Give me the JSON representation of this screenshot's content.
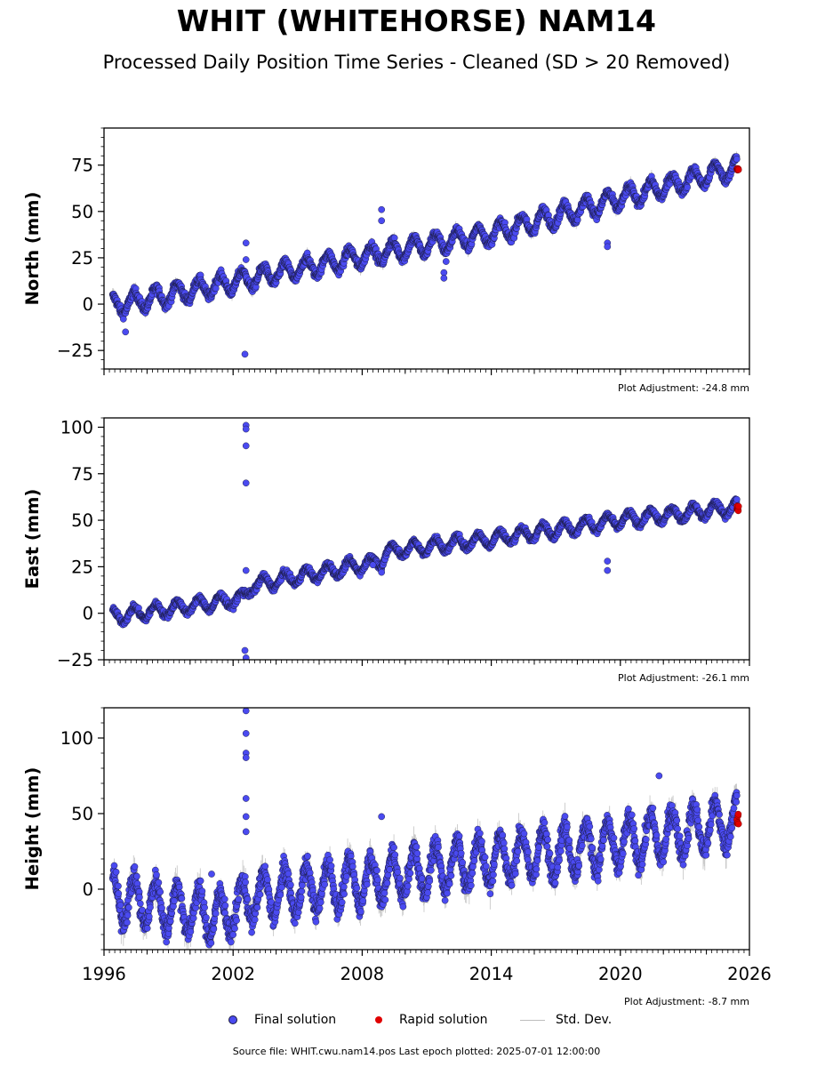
{
  "title": "WHIT (WHITEHORSE) NAM14",
  "subtitle": "Processed Daily Position Time Series - Cleaned (SD > 20 Removed)",
  "legend": {
    "final": "Final solution",
    "rapid": "Rapid solution",
    "std": "Std. Dev."
  },
  "footer": "Source file: WHIT.cwu.nam14.pos  Last epoch plotted: 2025-07-01 12:00:00",
  "colors": {
    "final": "#4a4af0",
    "final_edge": "#1a1a40",
    "rapid": "#e00000",
    "std": "#9e9e9e"
  },
  "chart_data": [
    {
      "type": "scatter",
      "ylabel": "North (mm)",
      "note": "Plot Adjustment: -24.8 mm",
      "xlim": [
        1996,
        2026
      ],
      "ylim": [
        -35,
        95
      ],
      "yticks": [
        -25,
        0,
        25,
        50,
        75
      ],
      "trend": [
        [
          1996.4,
          -1
        ],
        [
          2002.5,
          13
        ],
        [
          2009.0,
          28
        ],
        [
          2014.0,
          38
        ],
        [
          2020.0,
          57
        ],
        [
          2025.5,
          74
        ]
      ],
      "seasonal_amplitude": 5,
      "final_last_epoch": 2025.42,
      "rapid": {
        "x_start": 2025.42,
        "x_end": 2025.5,
        "y": [
          72,
          74
        ]
      },
      "outliers": [
        [
          2002.6,
          33
        ],
        [
          2002.55,
          -27
        ],
        [
          2002.6,
          24
        ],
        [
          2008.9,
          51
        ],
        [
          2008.9,
          45
        ],
        [
          2019.4,
          33
        ],
        [
          2019.4,
          31
        ],
        [
          2011.8,
          17
        ],
        [
          2011.8,
          14
        ],
        [
          1997.0,
          -15
        ],
        [
          2011.9,
          23
        ]
      ]
    },
    {
      "type": "scatter",
      "ylabel": "East (mm)",
      "note": "Plot Adjustment: -26.1 mm",
      "xlim": [
        1996,
        2026
      ],
      "ylim": [
        -25,
        105
      ],
      "yticks": [
        -25,
        0,
        25,
        50,
        75,
        100
      ],
      "trend": [
        [
          1996.4,
          -2
        ],
        [
          2002.5,
          8
        ],
        [
          2002.9,
          15
        ],
        [
          2008.9,
          28
        ],
        [
          2009.1,
          33
        ],
        [
          2014.0,
          40
        ],
        [
          2020.0,
          50
        ],
        [
          2025.5,
          57
        ]
      ],
      "seasonal_amplitude": 3.5,
      "final_last_epoch": 2025.42,
      "rapid": {
        "x_start": 2025.42,
        "x_end": 2025.5,
        "y": [
          55,
          58
        ]
      },
      "outliers": [
        [
          2002.6,
          101
        ],
        [
          2002.6,
          99
        ],
        [
          2002.6,
          90
        ],
        [
          2002.6,
          70
        ],
        [
          2002.6,
          23
        ],
        [
          2002.55,
          -20
        ],
        [
          2002.6,
          -24
        ],
        [
          2019.4,
          28
        ],
        [
          2019.4,
          23
        ],
        [
          2008.5,
          26
        ],
        [
          2008.9,
          22
        ]
      ]
    },
    {
      "type": "scatter",
      "ylabel": "Height (mm)",
      "note": "Plot Adjustment: -8.7 mm",
      "xlim": [
        1996,
        2026
      ],
      "ylim": [
        -40,
        120
      ],
      "yticks": [
        0,
        50,
        100
      ],
      "xticks": [
        1996,
        2002,
        2008,
        2014,
        2020,
        2026
      ],
      "trend": [
        [
          1996.4,
          -5
        ],
        [
          2001.5,
          -18
        ],
        [
          2003.0,
          -5
        ],
        [
          2008.0,
          5
        ],
        [
          2014.0,
          20
        ],
        [
          2020.0,
          30
        ],
        [
          2025.5,
          45
        ]
      ],
      "seasonal_amplitude": 15,
      "final_last_epoch": 2025.42,
      "rapid": {
        "x_start": 2025.42,
        "x_end": 2025.5,
        "y": [
          38,
          52
        ]
      },
      "outliers": [
        [
          2002.6,
          118
        ],
        [
          2002.6,
          103
        ],
        [
          2002.6,
          90
        ],
        [
          2002.6,
          87
        ],
        [
          2002.6,
          60
        ],
        [
          2002.6,
          48
        ],
        [
          2002.6,
          38
        ],
        [
          2001.0,
          10
        ],
        [
          2008.9,
          48
        ],
        [
          2021.8,
          75
        ],
        [
          1998.9,
          -35
        ]
      ]
    }
  ]
}
